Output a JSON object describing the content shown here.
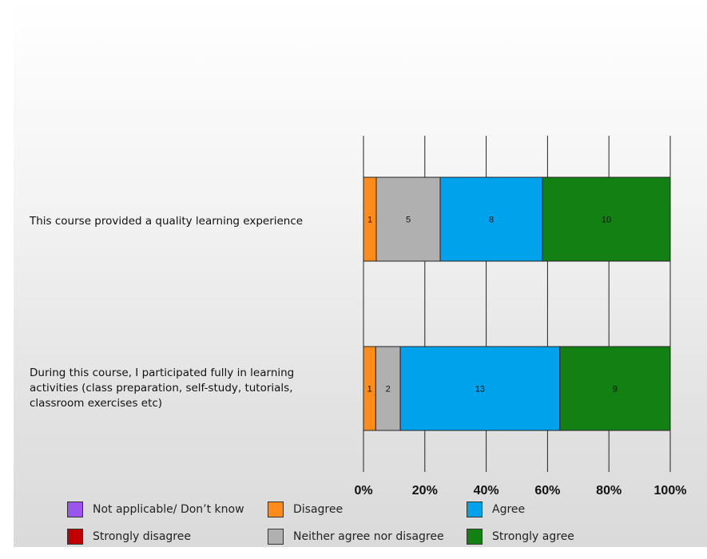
{
  "chart_data": {
    "type": "bar",
    "orientation": "horizontal",
    "stacked": true,
    "percent_stacked": true,
    "categories": [
      "This course provided a quality learning experience",
      "During this course, I participated fully in learning activities (class preparation, self-study, tutorials, classroom exercises etc)"
    ],
    "series": [
      {
        "name": "Not applicable/ Don’t know",
        "color": "#9955ee",
        "values": [
          0,
          0
        ]
      },
      {
        "name": "Strongly disagree",
        "color": "#c00000",
        "values": [
          0,
          0
        ]
      },
      {
        "name": "Disagree",
        "color": "#ff8c1a",
        "values": [
          1,
          1
        ]
      },
      {
        "name": "Neither agree nor disagree",
        "color": "#b0b0b0",
        "values": [
          5,
          2
        ]
      },
      {
        "name": "Agree",
        "color": "#00a2ec",
        "values": [
          8,
          13
        ]
      },
      {
        "name": "Strongly agree",
        "color": "#138013",
        "values": [
          10,
          9
        ]
      }
    ],
    "xlim": [
      0,
      100
    ],
    "xticks": [
      "0%",
      "20%",
      "40%",
      "60%",
      "80%",
      "100%"
    ],
    "grid": true,
    "legend_position": "bottom"
  },
  "legend_order": [
    "Not applicable/ Don’t know",
    "Disagree",
    "Agree",
    "Strongly disagree",
    "Neither agree nor disagree",
    "Strongly agree"
  ]
}
